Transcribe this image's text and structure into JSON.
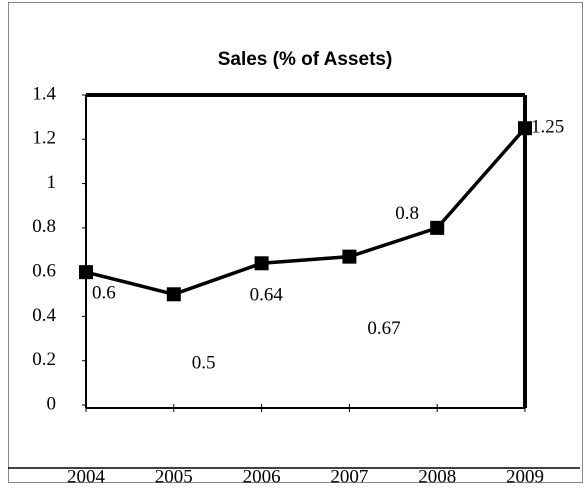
{
  "chart_data": {
    "type": "line",
    "title": "Sales (% of Assets)",
    "categories": [
      "2004",
      "2005",
      "2006",
      "2007",
      "2008",
      "2009"
    ],
    "series": [
      {
        "name": "Sales",
        "color": "#000000",
        "values": [
          0.6,
          0.5,
          0.64,
          0.67,
          0.8,
          1.25
        ]
      }
    ],
    "ylim": [
      0,
      1.4
    ],
    "yticks": [
      0,
      0.2,
      0.4,
      0.6,
      0.8,
      1,
      1.2,
      1.4
    ]
  }
}
